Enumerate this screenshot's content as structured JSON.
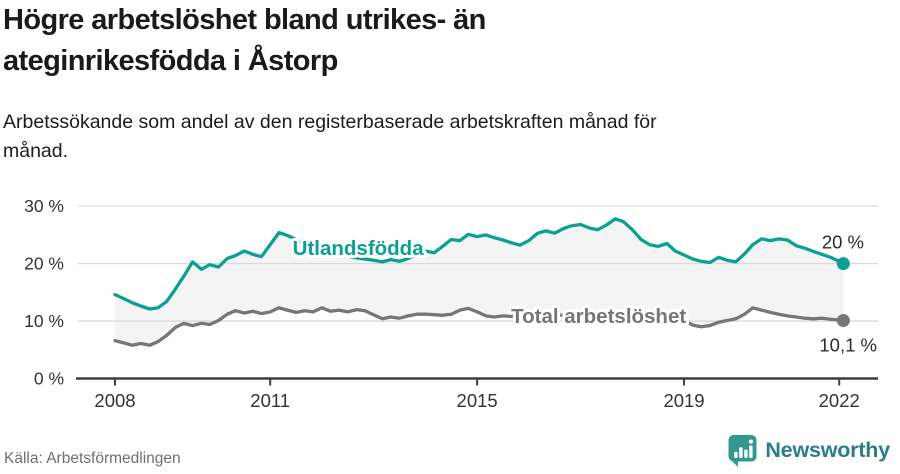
{
  "header": {
    "title_line1": "Högre arbetslöshet bland utrikes- än",
    "title_line2": "inrikesfödda i Åstorp",
    "subtitle_line1": "Arbetssökande som andel av den registerbaserade arbetskraften månad för",
    "subtitle_line2": "månad."
  },
  "footer": {
    "source": "Källa: Arbetsförmedlingen",
    "brand": "Newsworthy"
  },
  "colors": {
    "accent_teal": "#0ba094",
    "series_gray": "#76767a",
    "band_fill": "#f4f4f4",
    "grid": "#d9d9d9",
    "axis": "#3d3d3d",
    "tick_text": "#333333",
    "value_text": "#2b2b2b",
    "brand_badge": "#35988f",
    "brand_text": "#2b7d88",
    "halo": "#ffffff"
  },
  "chart_data": {
    "type": "line",
    "title": "Högre arbetslöshet bland utrikes- än inrikesfödda i Åstorp",
    "subtitle": "Arbetssökande som andel av den registerbaserade arbetskraften månad för månad.",
    "xlabel": "",
    "ylabel": "",
    "xlim": [
      2008,
      2022.2
    ],
    "ylim": [
      0,
      32
    ],
    "grid": "horizontal",
    "legend_position": "inline-labels",
    "y_ticks": [
      {
        "v": 0,
        "label": "0 %"
      },
      {
        "v": 10,
        "label": "10 %"
      },
      {
        "v": 20,
        "label": "20 %"
      },
      {
        "v": 30,
        "label": "30 %"
      }
    ],
    "x_ticks": [
      {
        "v": 2008,
        "label": "2008"
      },
      {
        "v": 2011,
        "label": "2011"
      },
      {
        "v": 2015,
        "label": "2015"
      },
      {
        "v": 2019,
        "label": "2019"
      },
      {
        "v": 2022,
        "label": "2022"
      }
    ],
    "fill_between_series": true,
    "series": [
      {
        "name": "Utlandsfödda",
        "color": "#0ba094",
        "end_label": "20 %",
        "label_x": 2012.7,
        "label_y": 22.7,
        "points": [
          [
            2008.0,
            14.6
          ],
          [
            2008.17,
            13.9
          ],
          [
            2008.33,
            13.2
          ],
          [
            2008.5,
            12.6
          ],
          [
            2008.67,
            12.1
          ],
          [
            2008.83,
            12.3
          ],
          [
            2009.0,
            13.4
          ],
          [
            2009.17,
            15.6
          ],
          [
            2009.33,
            17.8
          ],
          [
            2009.5,
            20.3
          ],
          [
            2009.67,
            19.0
          ],
          [
            2009.83,
            19.8
          ],
          [
            2010.0,
            19.4
          ],
          [
            2010.17,
            20.9
          ],
          [
            2010.33,
            21.4
          ],
          [
            2010.5,
            22.2
          ],
          [
            2010.67,
            21.6
          ],
          [
            2010.83,
            21.2
          ],
          [
            2011.0,
            23.3
          ],
          [
            2011.17,
            25.4
          ],
          [
            2011.33,
            24.9
          ],
          [
            2011.5,
            24.2
          ],
          [
            2011.67,
            23.4
          ],
          [
            2011.83,
            22.8
          ],
          [
            2012.0,
            22.4
          ],
          [
            2012.17,
            22.0
          ],
          [
            2012.33,
            21.7
          ],
          [
            2012.5,
            21.3
          ],
          [
            2012.67,
            21.0
          ],
          [
            2012.83,
            20.8
          ],
          [
            2013.0,
            20.6
          ],
          [
            2013.17,
            20.3
          ],
          [
            2013.33,
            20.7
          ],
          [
            2013.5,
            20.4
          ],
          [
            2013.67,
            20.9
          ],
          [
            2013.83,
            21.6
          ],
          [
            2014.0,
            22.2
          ],
          [
            2014.17,
            21.9
          ],
          [
            2014.33,
            23.0
          ],
          [
            2014.5,
            24.2
          ],
          [
            2014.67,
            24.0
          ],
          [
            2014.83,
            25.1
          ],
          [
            2015.0,
            24.7
          ],
          [
            2015.17,
            25.0
          ],
          [
            2015.33,
            24.5
          ],
          [
            2015.5,
            24.1
          ],
          [
            2015.67,
            23.6
          ],
          [
            2015.83,
            23.2
          ],
          [
            2016.0,
            24.0
          ],
          [
            2016.17,
            25.3
          ],
          [
            2016.33,
            25.7
          ],
          [
            2016.5,
            25.3
          ],
          [
            2016.67,
            26.1
          ],
          [
            2016.83,
            26.6
          ],
          [
            2017.0,
            26.8
          ],
          [
            2017.17,
            26.2
          ],
          [
            2017.33,
            25.9
          ],
          [
            2017.5,
            26.7
          ],
          [
            2017.67,
            27.8
          ],
          [
            2017.83,
            27.3
          ],
          [
            2018.0,
            25.9
          ],
          [
            2018.17,
            24.2
          ],
          [
            2018.33,
            23.3
          ],
          [
            2018.5,
            23.0
          ],
          [
            2018.67,
            23.5
          ],
          [
            2018.83,
            22.2
          ],
          [
            2019.0,
            21.5
          ],
          [
            2019.17,
            20.8
          ],
          [
            2019.33,
            20.4
          ],
          [
            2019.5,
            20.2
          ],
          [
            2019.67,
            21.1
          ],
          [
            2019.83,
            20.6
          ],
          [
            2020.0,
            20.3
          ],
          [
            2020.17,
            21.7
          ],
          [
            2020.33,
            23.3
          ],
          [
            2020.5,
            24.3
          ],
          [
            2020.67,
            24.0
          ],
          [
            2020.83,
            24.3
          ],
          [
            2021.0,
            24.1
          ],
          [
            2021.17,
            23.1
          ],
          [
            2021.33,
            22.7
          ],
          [
            2021.5,
            22.1
          ],
          [
            2021.67,
            21.6
          ],
          [
            2021.83,
            21.1
          ],
          [
            2022.0,
            20.4
          ],
          [
            2022.08,
            20.0
          ]
        ]
      },
      {
        "name": "Total arbetslöshet",
        "color": "#76767a",
        "end_label": "10,1 %",
        "label_x": 2017.35,
        "label_y": 10.9,
        "points": [
          [
            2008.0,
            6.6
          ],
          [
            2008.17,
            6.2
          ],
          [
            2008.33,
            5.8
          ],
          [
            2008.5,
            6.1
          ],
          [
            2008.67,
            5.8
          ],
          [
            2008.83,
            6.4
          ],
          [
            2009.0,
            7.5
          ],
          [
            2009.17,
            8.9
          ],
          [
            2009.33,
            9.6
          ],
          [
            2009.5,
            9.2
          ],
          [
            2009.67,
            9.6
          ],
          [
            2009.83,
            9.4
          ],
          [
            2010.0,
            10.1
          ],
          [
            2010.17,
            11.2
          ],
          [
            2010.33,
            11.8
          ],
          [
            2010.5,
            11.4
          ],
          [
            2010.67,
            11.7
          ],
          [
            2010.83,
            11.3
          ],
          [
            2011.0,
            11.6
          ],
          [
            2011.17,
            12.3
          ],
          [
            2011.33,
            11.9
          ],
          [
            2011.5,
            11.5
          ],
          [
            2011.67,
            11.8
          ],
          [
            2011.83,
            11.6
          ],
          [
            2012.0,
            12.3
          ],
          [
            2012.17,
            11.7
          ],
          [
            2012.33,
            11.9
          ],
          [
            2012.5,
            11.6
          ],
          [
            2012.67,
            12.0
          ],
          [
            2012.83,
            11.8
          ],
          [
            2013.0,
            11.1
          ],
          [
            2013.17,
            10.4
          ],
          [
            2013.33,
            10.7
          ],
          [
            2013.5,
            10.5
          ],
          [
            2013.67,
            10.9
          ],
          [
            2013.83,
            11.2
          ],
          [
            2014.0,
            11.2
          ],
          [
            2014.17,
            11.1
          ],
          [
            2014.33,
            11.0
          ],
          [
            2014.5,
            11.2
          ],
          [
            2014.67,
            11.9
          ],
          [
            2014.83,
            12.2
          ],
          [
            2015.0,
            11.6
          ],
          [
            2015.17,
            10.9
          ],
          [
            2015.33,
            10.7
          ],
          [
            2015.5,
            10.9
          ],
          [
            2015.67,
            10.8
          ],
          [
            2015.83,
            11.0
          ],
          [
            2016.0,
            11.1
          ],
          [
            2016.17,
            11.0
          ],
          [
            2016.33,
            11.2
          ],
          [
            2016.5,
            11.1
          ],
          [
            2016.67,
            11.0
          ],
          [
            2016.83,
            11.1
          ],
          [
            2017.0,
            11.2
          ],
          [
            2017.17,
            11.0
          ],
          [
            2017.33,
            11.1
          ],
          [
            2017.5,
            11.3
          ],
          [
            2017.67,
            11.5
          ],
          [
            2017.83,
            11.2
          ],
          [
            2018.0,
            11.0
          ],
          [
            2018.17,
            10.6
          ],
          [
            2018.33,
            10.2
          ],
          [
            2018.5,
            10.4
          ],
          [
            2018.67,
            10.7
          ],
          [
            2018.83,
            10.3
          ],
          [
            2019.0,
            10.1
          ],
          [
            2019.17,
            9.3
          ],
          [
            2019.33,
            9.0
          ],
          [
            2019.5,
            9.2
          ],
          [
            2019.67,
            9.8
          ],
          [
            2019.83,
            10.1
          ],
          [
            2020.0,
            10.4
          ],
          [
            2020.17,
            11.2
          ],
          [
            2020.33,
            12.3
          ],
          [
            2020.5,
            11.9
          ],
          [
            2020.67,
            11.5
          ],
          [
            2020.83,
            11.2
          ],
          [
            2021.0,
            10.9
          ],
          [
            2021.17,
            10.7
          ],
          [
            2021.33,
            10.5
          ],
          [
            2021.5,
            10.4
          ],
          [
            2021.67,
            10.5
          ],
          [
            2021.83,
            10.3
          ],
          [
            2022.0,
            10.2
          ],
          [
            2022.08,
            10.1
          ]
        ]
      }
    ]
  }
}
